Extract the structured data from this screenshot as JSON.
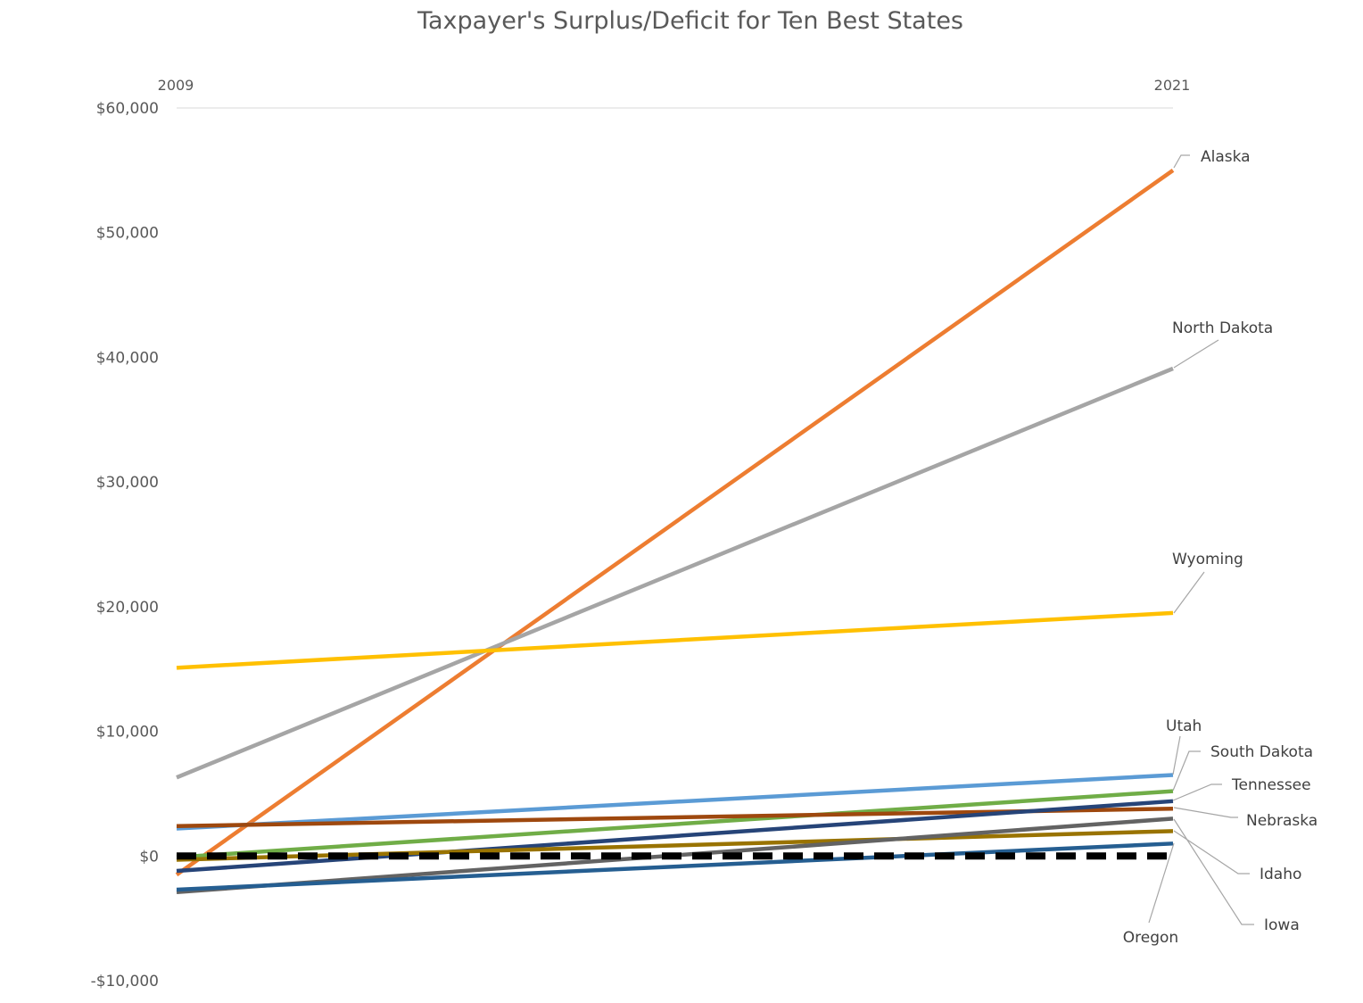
{
  "chart_data": {
    "type": "line",
    "title": "Taxpayer's Surplus/Deficit for Ten Best States",
    "categories": [
      "2009",
      "2021"
    ],
    "ylim": [
      -10000,
      60000
    ],
    "yticks": [
      60000,
      50000,
      40000,
      30000,
      20000,
      10000,
      0,
      -10000
    ],
    "ytick_labels": [
      "$60,000",
      "$50,000",
      "$40,000",
      "$30,000",
      "$20,000",
      "$10,000",
      "$0",
      "-$10,000"
    ],
    "grid": "top line only",
    "series": [
      {
        "name": "Alaska",
        "values": [
          -1500,
          55000
        ],
        "color": "#ED7D31"
      },
      {
        "name": "North Dakota",
        "values": [
          6300,
          39100
        ],
        "color": "#A5A5A5"
      },
      {
        "name": "Wyoming",
        "values": [
          15100,
          19500
        ],
        "color": "#FFC000"
      },
      {
        "name": "Utah",
        "values": [
          2200,
          6500
        ],
        "color": "#5B9BD5"
      },
      {
        "name": "South Dakota",
        "values": [
          -100,
          5200
        ],
        "color": "#70AD47"
      },
      {
        "name": "Tennessee",
        "values": [
          2400,
          3800
        ],
        "color": "#9E480E"
      },
      {
        "name": "Nebraska",
        "values": [
          -1200,
          4400
        ],
        "color": "#264478"
      },
      {
        "name": "Idaho",
        "values": [
          -300,
          2000
        ],
        "color": "#997300"
      },
      {
        "name": "Iowa",
        "values": [
          -2900,
          3000
        ],
        "color": "#636363"
      },
      {
        "name": "Oregon",
        "values": [
          -2700,
          1000
        ],
        "color": "#255E91"
      },
      {
        "name": "",
        "values": [
          0,
          0
        ],
        "color": "#000000",
        "dashed": true
      }
    ]
  }
}
